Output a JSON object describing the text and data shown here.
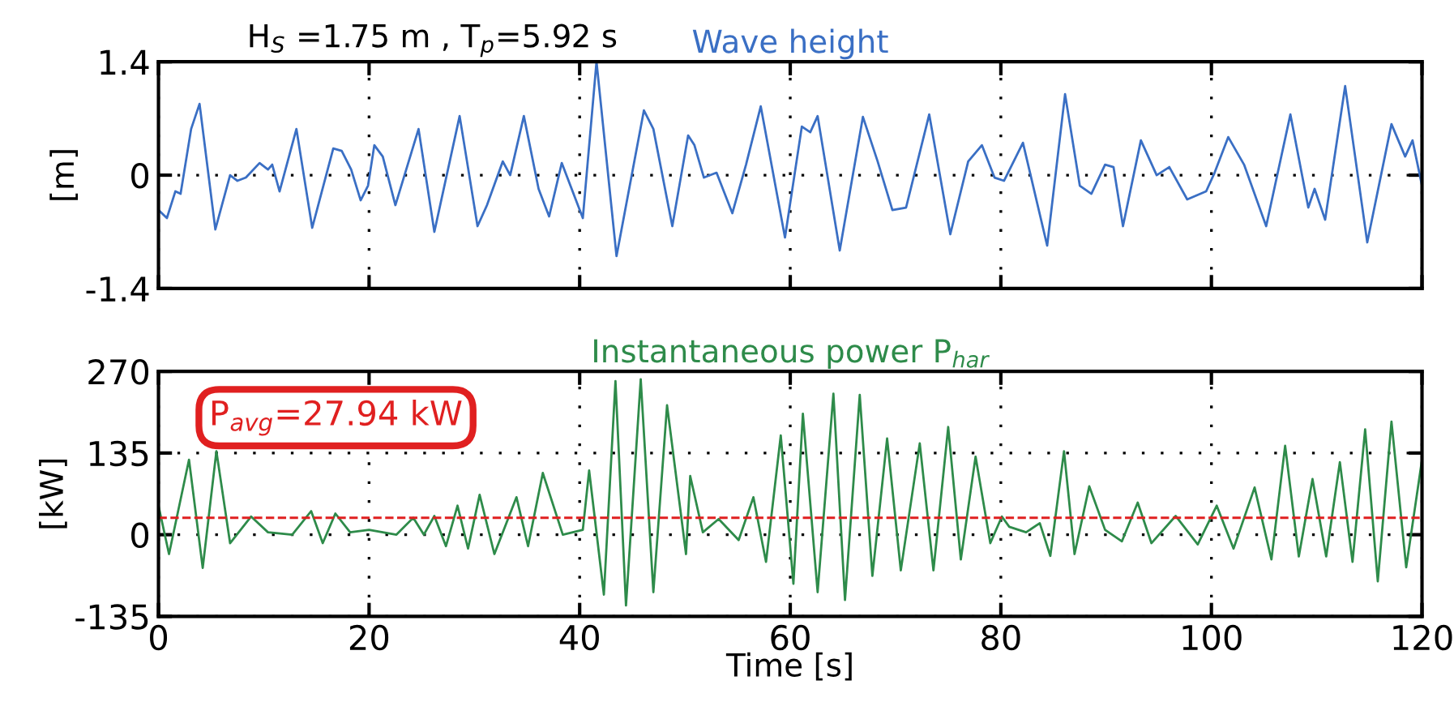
{
  "chart_data": [
    {
      "type": "line",
      "title": "Wave height",
      "subtitle": "H$_{S}$ =1.75 m , T$_{p}$=5.92 s",
      "ylabel": "[m]",
      "xlim": [
        0,
        120
      ],
      "xticks": [
        0,
        20,
        40,
        60,
        80,
        100,
        120
      ],
      "ylim": [
        -1.4,
        1.4
      ],
      "yticks": [
        -1.4,
        0,
        1.4
      ],
      "grid": true,
      "tick_labels": "y",
      "line_style": "solid",
      "marker": "none",
      "series": [
        {
          "color": "#3a6fc4",
          "x": [
            0,
            0.8,
            1.6,
            2.1,
            3.1,
            3.9,
            5.4,
            6.8,
            7.5,
            8.3,
            9.6,
            10.4,
            10.8,
            11.5,
            13.1,
            14.6,
            16.6,
            17.4,
            18.3,
            19.2,
            19.9,
            20.5,
            21.3,
            22.5,
            24.7,
            26.2,
            28.6,
            30.3,
            31.2,
            32.7,
            33.4,
            34.7,
            36.1,
            37.1,
            38.3,
            40.3,
            41.6,
            43.5,
            46.1,
            47.0,
            48.8,
            50.3,
            50.9,
            51.8,
            53.0,
            54.5,
            55.8,
            57.2,
            59.5,
            61.1,
            61.9,
            62.6,
            64.7,
            66.9,
            68.3,
            69.7,
            71.0,
            73.2,
            75.2,
            76.9,
            78.2,
            79.4,
            80.3,
            82.1,
            84.4,
            86.1,
            87.5,
            88.6,
            89.9,
            90.7,
            91.6,
            93.3,
            94.8,
            96.0,
            97.7,
            99.5,
            100.3,
            101.6,
            103.1,
            105.2,
            107.5,
            109.2,
            109.8,
            110.8,
            112.7,
            114.8,
            117.1,
            118.4,
            119.1,
            120
          ],
          "values": [
            -0.43,
            -0.53,
            -0.2,
            -0.23,
            0.57,
            0.88,
            -0.67,
            0,
            -0.07,
            -0.03,
            0.15,
            0.07,
            0.13,
            -0.2,
            0.57,
            -0.65,
            0.33,
            0.3,
            0.07,
            -0.31,
            -0.13,
            0.37,
            0.23,
            -0.37,
            0.57,
            -0.7,
            0.73,
            -0.63,
            -0.37,
            0.17,
            0,
            0.73,
            -0.17,
            -0.51,
            0.15,
            -0.53,
            1.4,
            -1.0,
            0.8,
            0.57,
            -0.63,
            0.49,
            0.37,
            -0.03,
            0.03,
            -0.47,
            0.13,
            0.85,
            -0.77,
            0.6,
            0.53,
            0.73,
            -0.93,
            0.72,
            0.17,
            -0.43,
            -0.4,
            0.75,
            -0.73,
            0.17,
            0.37,
            -0.03,
            -0.07,
            0.4,
            -0.87,
            1.0,
            -0.13,
            -0.23,
            0.13,
            0.1,
            -0.63,
            0.43,
            0,
            0.1,
            -0.3,
            -0.2,
            0.03,
            0.47,
            0.13,
            -0.63,
            0.75,
            -0.4,
            -0.17,
            -0.55,
            1.1,
            -0.83,
            0.63,
            0.23,
            0.43,
            -0.13
          ]
        }
      ]
    },
    {
      "type": "line",
      "title": "Instantaneous power P$_{har}$",
      "ylabel": "[kW]",
      "xlabel": "Time [s]",
      "xlim": [
        0,
        120
      ],
      "xticks": [
        0,
        20,
        40,
        60,
        80,
        100,
        120
      ],
      "ylim": [
        -135,
        270
      ],
      "yticks": [
        -135,
        0,
        135,
        270
      ],
      "grid": true,
      "line_style": "solid",
      "marker": "none",
      "ref_lines": [
        {
          "axis": "y",
          "value": 27.94,
          "color": "#e02020",
          "line_style": "dashed"
        }
      ],
      "annotations": [
        "P$_{avg}$=27.94 kW"
      ],
      "series": [
        {
          "color": "#2e8b4a",
          "x": [
            0,
            1.0,
            2.9,
            4.2,
            5.5,
            6.8,
            8.8,
            10.4,
            12.7,
            14.5,
            15.6,
            16.8,
            18.2,
            20.0,
            22.6,
            24.2,
            25.2,
            26.2,
            27.3,
            28.4,
            29.4,
            30.5,
            31.9,
            34.0,
            35.1,
            36.5,
            38.4,
            40.3,
            40.9,
            42.3,
            43.4,
            44.4,
            45.8,
            47.0,
            48.3,
            50.1,
            50.5,
            51.7,
            53.2,
            55.1,
            56.5,
            57.7,
            59.1,
            60.3,
            61.2,
            62.6,
            64.1,
            65.2,
            66.6,
            67.8,
            69.2,
            70.5,
            72.3,
            73.6,
            75.0,
            76.2,
            77.6,
            79.0,
            80.1,
            80.8,
            82.4,
            83.7,
            84.7,
            86.0,
            87.0,
            88.4,
            89.9,
            91.5,
            93.0,
            94.3,
            96.6,
            98.7,
            100.5,
            102.1,
            104.1,
            105.7,
            107.0,
            108.3,
            109.6,
            110.9,
            112.2,
            113.4,
            114.6,
            115.8,
            117.1,
            118.5,
            120
          ],
          "values": [
            48,
            -32,
            124,
            -55,
            138,
            -14,
            30,
            4,
            0,
            39,
            -14,
            35,
            4,
            8,
            0,
            28,
            0,
            31,
            -19,
            48,
            -23,
            66,
            -32,
            62,
            -19,
            102,
            0,
            8,
            106,
            -99,
            254,
            -117,
            257,
            -95,
            214,
            -32,
            97,
            4,
            26,
            -9,
            62,
            -45,
            164,
            -81,
            200,
            -95,
            233,
            -108,
            231,
            -68,
            159,
            -59,
            151,
            -59,
            178,
            -41,
            129,
            -14,
            30,
            13,
            4,
            19,
            -35,
            138,
            -32,
            80,
            8,
            -11,
            53,
            -14,
            31,
            -16,
            48,
            -23,
            78,
            -41,
            147,
            -36,
            92,
            -36,
            120,
            -45,
            174,
            -77,
            187,
            -54,
            124
          ]
        }
      ]
    }
  ]
}
